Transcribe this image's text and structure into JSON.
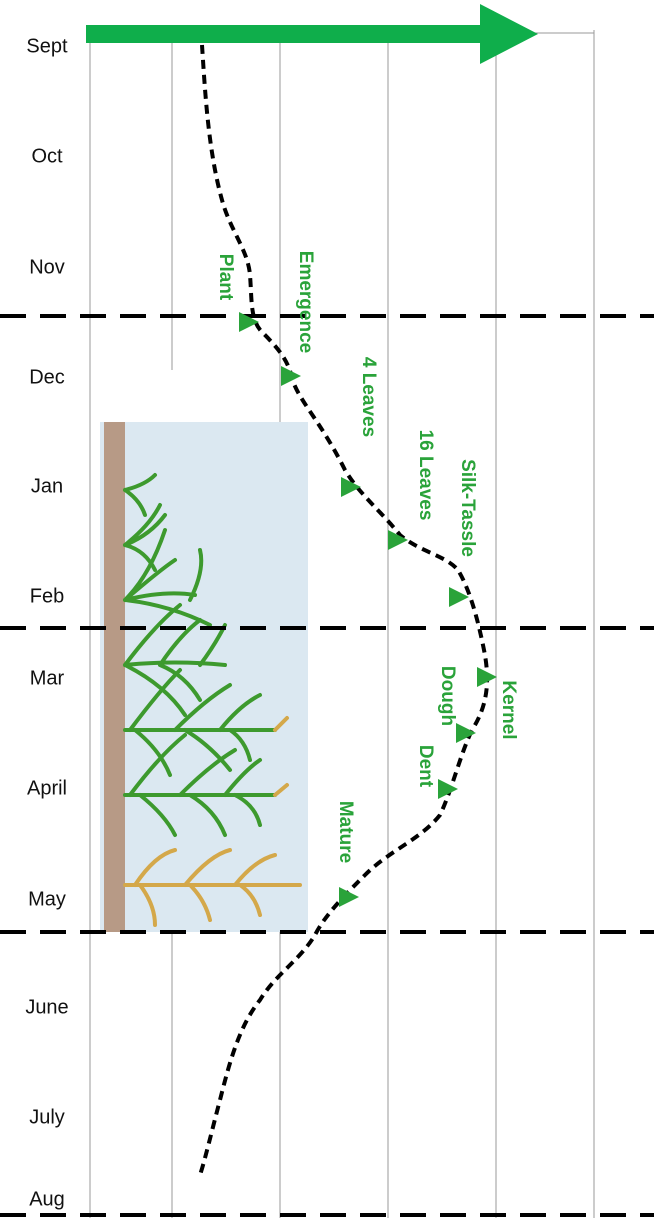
{
  "months": [
    "Sept",
    "Oct",
    "Nov",
    "Dec",
    "Jan",
    "Feb",
    "Mar",
    "April",
    "May",
    "June",
    "July",
    "Aug"
  ],
  "stages": [
    "Plant",
    "Emergence",
    "4 Leaves",
    "16 Leaves",
    "Silk-Tassle",
    "Kernel",
    "Dough",
    "Dent",
    "Mature"
  ]
}
